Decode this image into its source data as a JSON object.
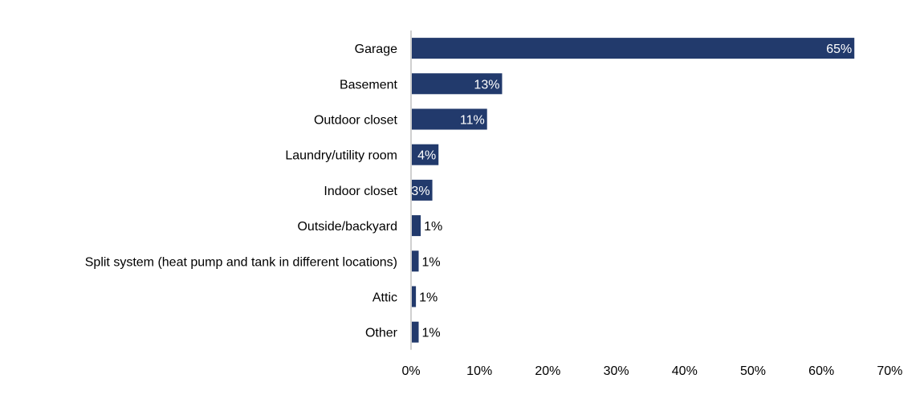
{
  "chart_data": {
    "type": "bar",
    "orientation": "horizontal",
    "title": "",
    "xlabel": "",
    "ylabel": "",
    "xlim": [
      0,
      70
    ],
    "x_ticks": [
      "0%",
      "10%",
      "20%",
      "30%",
      "40%",
      "50%",
      "60%",
      "70%"
    ],
    "categories": [
      "Garage",
      "Basement",
      "Outdoor closet",
      "Laundry/utility room",
      "Indoor closet",
      "Outside/backyard",
      "Split system (heat pump and tank in different locations)",
      "Attic",
      "Other"
    ],
    "values": [
      64.7,
      13.2,
      11.0,
      3.9,
      3.0,
      1.3,
      1.0,
      0.6,
      1.0
    ],
    "data_labels": [
      "65%",
      "13%",
      "11%",
      "4%",
      "3%",
      "1%",
      "1%",
      "1%",
      "1%"
    ],
    "grid": false,
    "legend": "none",
    "colors": {
      "bar": "#223a6c",
      "axis": "#d0d0d0",
      "label_inside": "#ffffff",
      "label_outside": "#000000"
    }
  }
}
